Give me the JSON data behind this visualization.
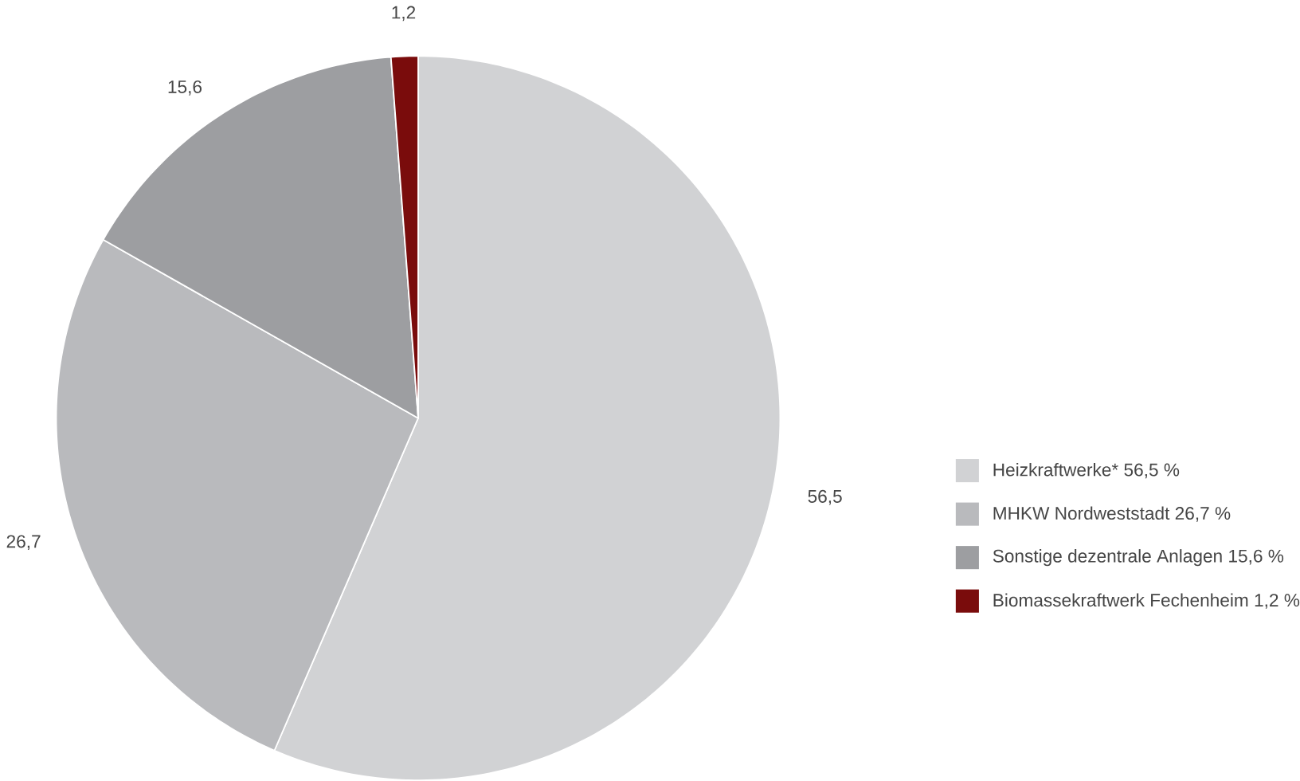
{
  "chart_data": {
    "type": "pie",
    "categories": [
      "Heizkraftwerke* 56,5 %",
      "MHKW Nordweststadt 26,7 %",
      "Sonstige dezentrale Anlagen 15,6 %",
      "Biomassekraftwerk Fechenheim 1,2 %"
    ],
    "values": [
      56.5,
      26.7,
      15.6,
      1.2
    ],
    "value_labels": [
      "56,5",
      "26,7",
      "15,6",
      "1,2"
    ],
    "colors": [
      "#d1d2d4",
      "#b9babd",
      "#9d9ea1",
      "#7a0c0c"
    ],
    "legend": "right"
  }
}
